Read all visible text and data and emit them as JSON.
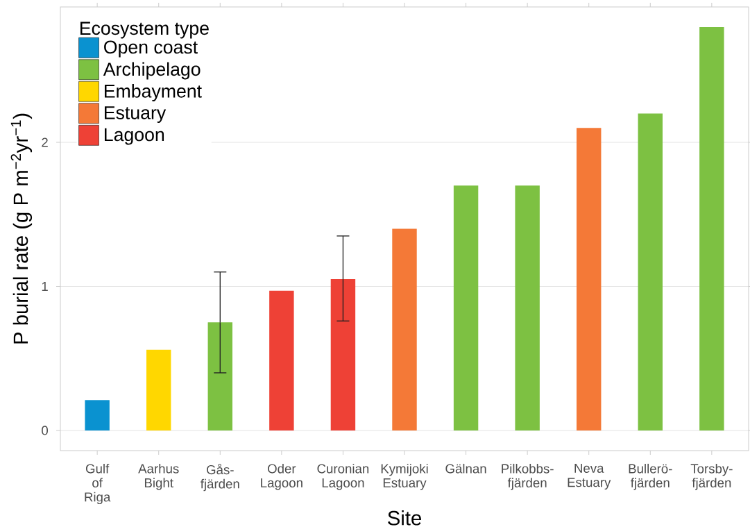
{
  "chart_data": {
    "type": "bar",
    "xlabel": "Site",
    "ylabel": "P burial rate (g P m$^{−2}$yr$^{−1}$)",
    "legend_title": "Ecosystem type",
    "categories": [
      "Gulf of Riga",
      "Aarhus Bight",
      "Gås-fjärden",
      "Oder Lagoon",
      "Curonian Lagoon",
      "Kymijoki Estuary",
      "Gälnan",
      "Pilkobbs-fjärden",
      "Neva Estuary",
      "Bullerö-fjärden",
      "Torsby-fjärden"
    ],
    "series": [
      {
        "name": "Open coast",
        "color": "#0a92d0",
        "values": [
          0.21,
          null,
          null,
          null,
          null,
          null,
          null,
          null,
          null,
          null,
          null
        ]
      },
      {
        "name": "Archipelago",
        "color": "#7dc142",
        "values": [
          null,
          null,
          0.75,
          null,
          null,
          null,
          1.7,
          1.7,
          null,
          2.2,
          2.8
        ],
        "errors": [
          null,
          null,
          [
            0.4,
            1.1
          ],
          null,
          null,
          null,
          null,
          null,
          null,
          null,
          null
        ]
      },
      {
        "name": "Embayment",
        "color": "#ffd700",
        "values": [
          null,
          0.56,
          null,
          null,
          null,
          null,
          null,
          null,
          null,
          null,
          null
        ]
      },
      {
        "name": "Estuary",
        "color": "#f47937",
        "values": [
          null,
          null,
          null,
          null,
          null,
          1.4,
          null,
          null,
          2.1,
          null,
          null
        ]
      },
      {
        "name": "Lagoon",
        "color": "#ee4136",
        "values": [
          null,
          null,
          null,
          0.97,
          1.05,
          null,
          null,
          null,
          null,
          null,
          null
        ],
        "errors": [
          null,
          null,
          null,
          null,
          [
            0.76,
            1.35
          ],
          null,
          null,
          null,
          null,
          null,
          null
        ]
      }
    ],
    "ylim": [
      -0.14,
      2.94
    ],
    "yticks": [
      0,
      1,
      2
    ],
    "grid": "y",
    "legend": "top left"
  }
}
